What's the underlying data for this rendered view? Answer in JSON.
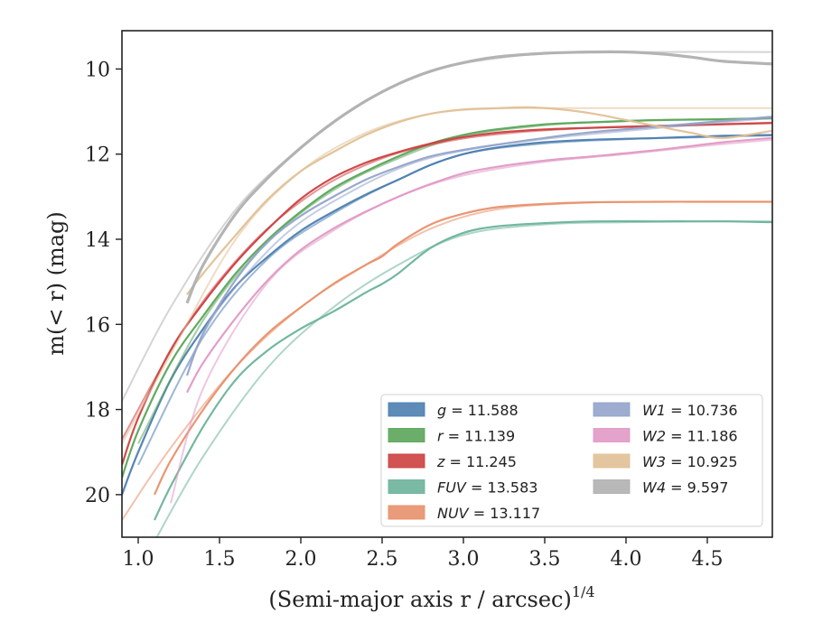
{
  "chart_data": {
    "type": "line",
    "xlabel": "(Semi-major axis r / arcsec)",
    "xlabel_sup": "1/4",
    "ylabel": "m(< r) (mag)",
    "xlim": [
      0.9,
      4.9
    ],
    "ylim": [
      21.0,
      9.1
    ],
    "y_inverted": true,
    "grid": false,
    "legend_placement": "lower-right",
    "x_ticks": [
      {
        "value": 1.0,
        "label": "1.0"
      },
      {
        "value": 1.5,
        "label": "1.5"
      },
      {
        "value": 2.0,
        "label": "2.0"
      },
      {
        "value": 2.5,
        "label": "2.5"
      },
      {
        "value": 3.0,
        "label": "3.0"
      },
      {
        "value": 3.5,
        "label": "3.5"
      },
      {
        "value": 4.0,
        "label": "4.0"
      },
      {
        "value": 4.5,
        "label": "4.5"
      }
    ],
    "y_ticks": [
      {
        "value": 10,
        "label": "10"
      },
      {
        "value": 12,
        "label": "12"
      },
      {
        "value": 14,
        "label": "14"
      },
      {
        "value": 16,
        "label": "16"
      },
      {
        "value": 18,
        "label": "18"
      },
      {
        "value": 20,
        "label": "20"
      }
    ],
    "series": [
      {
        "name": "g",
        "legend_label": "g = 11.588",
        "color": "#4c7eb0",
        "x": [
          0.9,
          1.0,
          1.2,
          1.4,
          1.6,
          1.8,
          2.0,
          2.2,
          2.4,
          2.6,
          2.8,
          3.0,
          3.2,
          3.5,
          3.8,
          4.2,
          4.6,
          4.9
        ],
        "y": [
          20.0,
          19.0,
          17.3,
          16.1,
          15.1,
          14.4,
          13.8,
          13.35,
          12.95,
          12.6,
          12.25,
          12.0,
          11.85,
          11.72,
          11.66,
          11.62,
          11.57,
          11.55
        ],
        "x_fit": [
          1.0,
          1.4,
          1.8,
          2.2,
          2.6,
          3.0,
          3.5,
          4.0,
          4.5,
          4.9
        ],
        "y_fit": [
          19.3,
          16.3,
          14.45,
          13.4,
          12.6,
          12.0,
          11.75,
          11.65,
          11.6,
          11.56
        ]
      },
      {
        "name": "r",
        "legend_label": "r = 11.139",
        "color": "#5aa55a",
        "x": [
          0.9,
          1.0,
          1.2,
          1.4,
          1.6,
          1.8,
          2.0,
          2.2,
          2.4,
          2.6,
          2.8,
          3.0,
          3.2,
          3.5,
          3.8,
          4.2,
          4.6,
          4.9
        ],
        "y": [
          19.6,
          18.5,
          16.9,
          15.8,
          14.8,
          14.0,
          13.35,
          12.8,
          12.4,
          12.05,
          11.75,
          11.55,
          11.42,
          11.3,
          11.25,
          11.2,
          11.18,
          11.16
        ],
        "x_fit": [
          1.0,
          1.4,
          1.8,
          2.2,
          2.6,
          3.0,
          3.5,
          4.0,
          4.5,
          4.9
        ],
        "y_fit": [
          18.8,
          15.9,
          14.05,
          12.85,
          12.1,
          11.58,
          11.32,
          11.22,
          11.18,
          11.15
        ]
      },
      {
        "name": "z",
        "legend_label": "z = 11.245",
        "color": "#cc4040",
        "x": [
          0.9,
          1.0,
          1.2,
          1.4,
          1.6,
          1.8,
          2.0,
          2.2,
          2.4,
          2.6,
          2.8,
          3.0,
          3.2,
          3.5,
          3.8,
          4.2,
          4.6,
          4.9
        ],
        "y": [
          19.3,
          18.2,
          16.6,
          15.5,
          14.55,
          13.75,
          13.05,
          12.55,
          12.2,
          11.95,
          11.75,
          11.6,
          11.5,
          11.42,
          11.38,
          11.34,
          11.3,
          11.27
        ],
        "x_fit": [
          0.9,
          1.3,
          1.7,
          2.1,
          2.5,
          2.9,
          3.3,
          3.8,
          4.3,
          4.9
        ],
        "y_fit": [
          18.7,
          16.0,
          14.1,
          12.85,
          12.1,
          11.7,
          11.5,
          11.38,
          11.32,
          11.26
        ]
      },
      {
        "name": "FUV",
        "legend_label": "FUV = 13.583",
        "color": "#6bb39a",
        "x": [
          1.1,
          1.2,
          1.4,
          1.6,
          1.8,
          2.0,
          2.2,
          2.4,
          2.5,
          2.6,
          2.8,
          3.0,
          3.2,
          3.5,
          3.8,
          4.2,
          4.6,
          4.9
        ],
        "y": [
          20.6,
          19.8,
          18.4,
          17.3,
          16.6,
          16.1,
          15.7,
          15.25,
          15.05,
          14.8,
          14.2,
          13.85,
          13.7,
          13.62,
          13.58,
          13.58,
          13.58,
          13.6
        ],
        "x_fit": [
          1.1,
          1.4,
          1.8,
          2.2,
          2.6,
          3.0,
          3.5,
          4.0,
          4.5,
          4.9
        ],
        "y_fit": [
          21.1,
          19.1,
          17.0,
          15.6,
          14.6,
          13.9,
          13.65,
          13.6,
          13.58,
          13.58
        ]
      },
      {
        "name": "NUV",
        "legend_label": "NUV = 13.117",
        "color": "#e8906a",
        "x": [
          1.1,
          1.2,
          1.4,
          1.6,
          1.8,
          2.0,
          2.2,
          2.4,
          2.5,
          2.6,
          2.8,
          3.0,
          3.2,
          3.5,
          3.8,
          4.2,
          4.6,
          4.9
        ],
        "y": [
          20.0,
          19.2,
          18.0,
          17.0,
          16.2,
          15.6,
          15.05,
          14.6,
          14.4,
          14.1,
          13.65,
          13.4,
          13.25,
          13.17,
          13.13,
          13.12,
          13.12,
          13.12
        ],
        "x_fit": [
          0.9,
          1.2,
          1.6,
          2.0,
          2.4,
          2.8,
          3.2,
          3.7,
          4.2,
          4.9
        ],
        "y_fit": [
          20.6,
          18.9,
          17.0,
          15.6,
          14.6,
          13.75,
          13.3,
          13.15,
          13.12,
          13.12
        ]
      },
      {
        "name": "W1",
        "legend_label": "W1 = 10.736",
        "color": "#93a3ca",
        "x": [
          1.3,
          1.4,
          1.6,
          1.8,
          2.0,
          2.2,
          2.4,
          2.6,
          2.8,
          3.0,
          3.2,
          3.5,
          3.8,
          4.2,
          4.6,
          4.9
        ],
        "y": [
          17.2,
          16.2,
          14.95,
          14.05,
          13.45,
          13.0,
          12.6,
          12.3,
          12.05,
          11.9,
          11.78,
          11.62,
          11.48,
          11.35,
          11.22,
          11.12
        ],
        "x_fit": [
          1.3,
          1.5,
          1.9,
          2.3,
          2.7,
          3.1,
          3.6,
          4.1,
          4.6,
          4.9
        ],
        "y_fit": [
          17.0,
          15.6,
          13.9,
          12.9,
          12.2,
          11.85,
          11.6,
          11.42,
          11.25,
          11.15
        ]
      },
      {
        "name": "W2",
        "legend_label": "W2 = 11.186",
        "color": "#e099c5",
        "x": [
          1.3,
          1.4,
          1.6,
          1.8,
          2.0,
          2.2,
          2.4,
          2.6,
          2.8,
          3.0,
          3.2,
          3.5,
          3.8,
          4.2,
          4.6,
          4.9
        ],
        "y": [
          17.6,
          16.9,
          15.85,
          14.95,
          14.25,
          13.75,
          13.35,
          13.0,
          12.7,
          12.45,
          12.3,
          12.15,
          12.05,
          11.9,
          11.72,
          11.62
        ],
        "x_fit": [
          1.2,
          1.4,
          1.8,
          2.2,
          2.6,
          3.0,
          3.5,
          4.0,
          4.5,
          4.9
        ],
        "y_fit": [
          20.2,
          17.5,
          15.0,
          13.8,
          13.0,
          12.5,
          12.18,
          12.0,
          11.8,
          11.66
        ]
      },
      {
        "name": "W3",
        "legend_label": "W3 = 10.925",
        "color": "#e0c095",
        "x": [
          1.3,
          1.4,
          1.6,
          1.8,
          2.0,
          2.2,
          2.4,
          2.6,
          2.8,
          3.0,
          3.2,
          3.4,
          3.6,
          3.8,
          4.0,
          4.2,
          4.4,
          4.6,
          4.9
        ],
        "y": [
          15.3,
          14.8,
          13.9,
          13.05,
          12.4,
          11.95,
          11.55,
          11.25,
          11.05,
          10.95,
          10.92,
          10.9,
          10.95,
          11.05,
          11.2,
          11.35,
          11.5,
          11.62,
          11.45
        ],
        "x_fit": [
          0.9,
          1.2,
          1.6,
          2.0,
          2.4,
          2.8,
          3.2,
          3.6,
          4.2,
          4.9
        ],
        "y_fit": [
          18.8,
          16.7,
          14.0,
          12.4,
          11.5,
          11.05,
          10.93,
          10.92,
          10.92,
          10.92
        ]
      },
      {
        "name": "W4",
        "legend_label": "W4 = 9.597",
        "color": "#b0b0b0",
        "x": [
          1.3,
          1.4,
          1.6,
          1.8,
          2.0,
          2.2,
          2.4,
          2.6,
          2.8,
          3.0,
          3.2,
          3.5,
          3.8,
          4.0,
          4.2,
          4.4,
          4.6,
          4.9
        ],
        "y": [
          15.5,
          14.6,
          13.4,
          12.55,
          11.85,
          11.25,
          10.75,
          10.35,
          10.05,
          9.85,
          9.72,
          9.63,
          9.6,
          9.6,
          9.64,
          9.72,
          9.82,
          9.88
        ],
        "x_fit": [
          0.9,
          1.2,
          1.6,
          2.0,
          2.4,
          2.8,
          3.2,
          3.6,
          4.2,
          4.9
        ],
        "y_fit": [
          17.8,
          15.6,
          13.3,
          11.85,
          10.75,
          10.05,
          9.75,
          9.62,
          9.6,
          9.6
        ]
      }
    ]
  }
}
